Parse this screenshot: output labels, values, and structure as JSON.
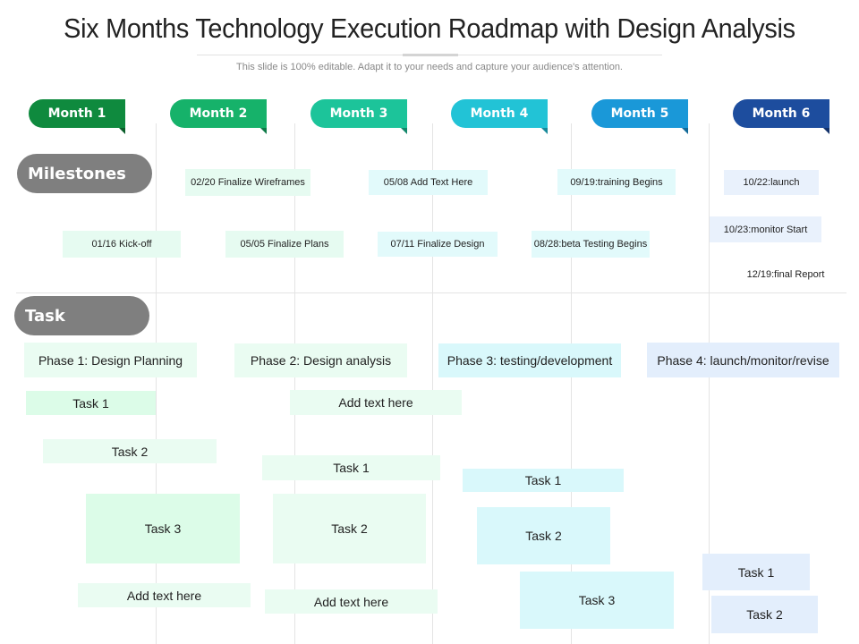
{
  "title": "Six Months Technology Execution Roadmap with Design Analysis",
  "subtitle": "This slide is 100% editable. Adapt it to your needs and capture your audience's attention.",
  "months": [
    {
      "label": "Month 1",
      "color": "#0f8a3e",
      "fold": "#0a5e2a"
    },
    {
      "label": "Month 2",
      "color": "#16b26a",
      "fold": "#0e7a48"
    },
    {
      "label": "Month 3",
      "color": "#1cc49a",
      "fold": "#13876b"
    },
    {
      "label": "Month 4",
      "color": "#22c3d6",
      "fold": "#17899a"
    },
    {
      "label": "Month 5",
      "color": "#1a98d8",
      "fold": "#126a99"
    },
    {
      "label": "Month 6",
      "color": "#1d4d9e",
      "fold": "#12316a"
    }
  ],
  "sections": {
    "milestones": "Milestones",
    "task": "Task"
  },
  "milestones": [
    "01/16 Kick-off",
    "02/20 Finalize Wireframes",
    "05/05 Finalize Plans",
    "05/08 Add Text Here",
    "07/11 Finalize Design",
    "08/28:beta Testing Begins",
    "09/19:training Begins",
    "10/22:launch",
    "10/23:monitor Start",
    "12/19:final Report"
  ],
  "phases": [
    "Phase 1: Design Planning",
    "Phase 2: Design analysis",
    "Phase 3: testing/development",
    "Phase 4: launch/monitor/revise"
  ],
  "tasks": {
    "p1": [
      "Task 1",
      "Task 2",
      "Task 3",
      "Add text here"
    ],
    "p2": [
      "Add text here",
      "Task 1",
      "Task 2",
      "Add text here"
    ],
    "p3": [
      "Task 1",
      "Task 2",
      "Task 3"
    ],
    "p4": [
      "Task 1",
      "Task 2"
    ]
  }
}
